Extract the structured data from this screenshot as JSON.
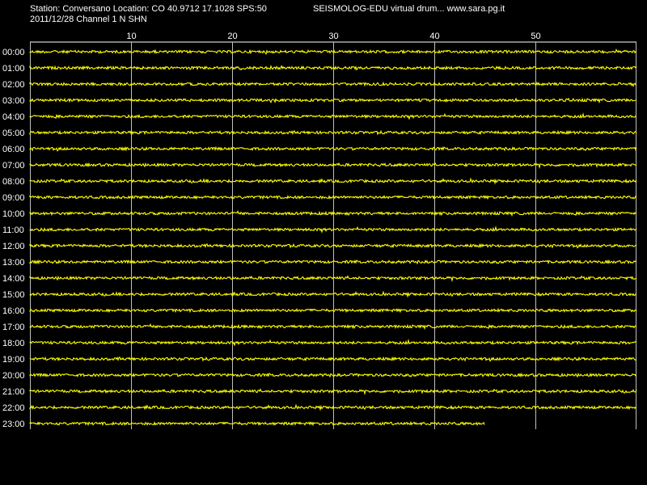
{
  "header": {
    "station_info": "Station: Conversano Location: CO 40.9712 17.1028 SPS:50",
    "app_info": "SEISMOLOG-EDU virtual drum... www.sara.pg.it",
    "date_channel": "2011/12/28  Channel 1 N SHN"
  },
  "chart_data": {
    "type": "line",
    "title": "",
    "xlabel": "",
    "ylabel": "",
    "x_unit": "minutes",
    "xlim": [
      0,
      60
    ],
    "x_ticks": [
      10,
      20,
      30,
      40,
      50
    ],
    "grid": true,
    "rows": [
      "00:00",
      "01:00",
      "02:00",
      "03:00",
      "04:00",
      "05:00",
      "06:00",
      "07:00",
      "08:00",
      "09:00",
      "10:00",
      "11:00",
      "12:00",
      "13:00",
      "14:00",
      "15:00",
      "16:00",
      "17:00",
      "18:00",
      "19:00",
      "20:00",
      "21:00",
      "22:00",
      "23:00"
    ],
    "row_end_minutes": [
      60,
      60,
      60,
      60,
      60,
      60,
      60,
      60,
      60,
      60,
      60,
      60,
      60,
      60,
      60,
      60,
      60,
      60,
      60,
      60,
      60,
      60,
      60,
      45
    ],
    "trace_color": "#ffff00",
    "grid_color": "#bfbfbf",
    "axis_color": "#ffffff"
  }
}
